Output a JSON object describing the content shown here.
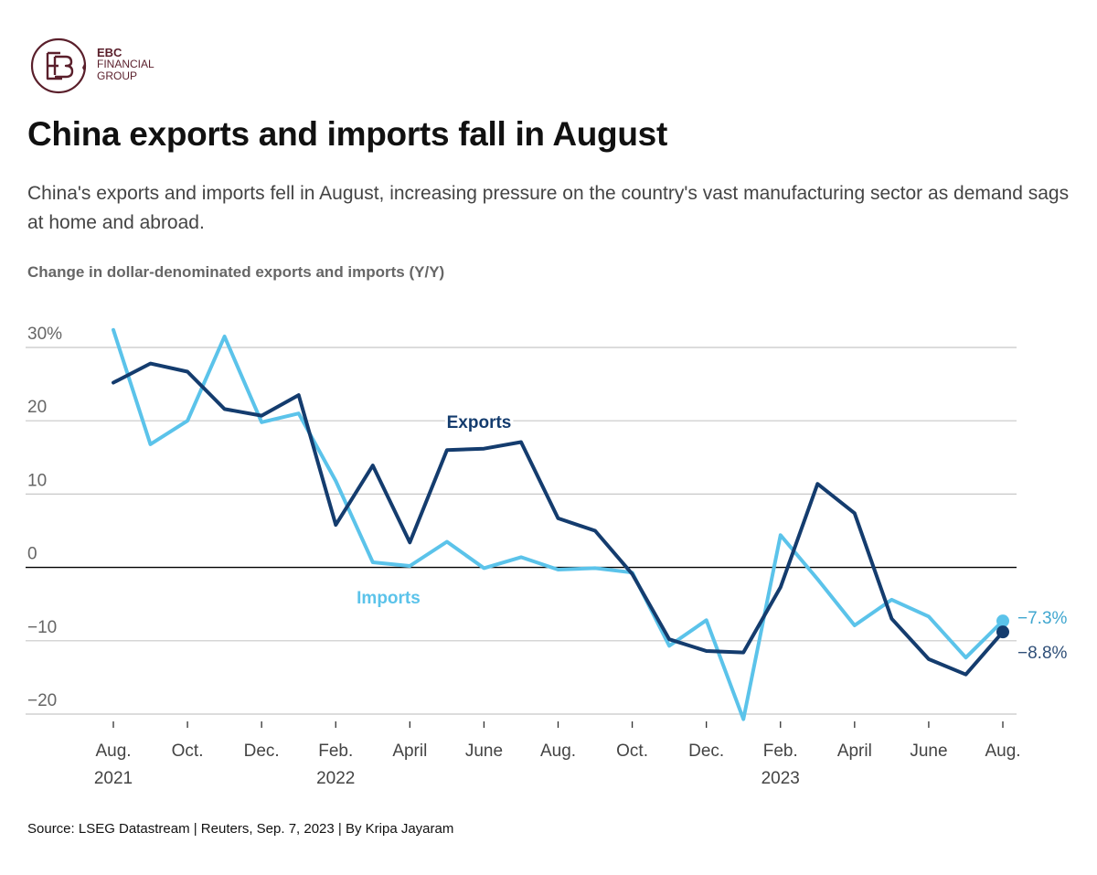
{
  "brand": {
    "logo_text": [
      "EBC",
      "FINANCIAL",
      "GROUP"
    ],
    "color": "#5a1f2b"
  },
  "title": "China exports and imports fall in August",
  "subtitle": "China's exports and imports fell in August, increasing pressure on the country's vast manufacturing sector as demand sags at home and abroad.",
  "axis_title": "Change in dollar-denominated exports and imports (Y/Y)",
  "source": "Source: LSEG Datastream | Reuters, Sep. 7, 2023 | By Kripa Jayaram",
  "chart_data": {
    "type": "line",
    "x": [
      "2021-08",
      "2021-09",
      "2021-10",
      "2021-11",
      "2021-12",
      "2022-01",
      "2022-02",
      "2022-03",
      "2022-04",
      "2022-05",
      "2022-06",
      "2022-07",
      "2022-08",
      "2022-09",
      "2022-10",
      "2022-11",
      "2022-12",
      "2023-01",
      "2023-02",
      "2023-03",
      "2023-04",
      "2023-05",
      "2023-06",
      "2023-07",
      "2023-08"
    ],
    "x_tick_labels": [
      {
        "x": "2021-08",
        "label": "Aug.",
        "year": "2021"
      },
      {
        "x": "2021-10",
        "label": "Oct.",
        "year": ""
      },
      {
        "x": "2021-12",
        "label": "Dec.",
        "year": ""
      },
      {
        "x": "2022-02",
        "label": "Feb.",
        "year": "2022"
      },
      {
        "x": "2022-04",
        "label": "April",
        "year": ""
      },
      {
        "x": "2022-06",
        "label": "June",
        "year": ""
      },
      {
        "x": "2022-08",
        "label": "Aug.",
        "year": ""
      },
      {
        "x": "2022-10",
        "label": "Oct.",
        "year": ""
      },
      {
        "x": "2022-12",
        "label": "Dec.",
        "year": ""
      },
      {
        "x": "2023-02",
        "label": "Feb.",
        "year": "2023"
      },
      {
        "x": "2023-04",
        "label": "April",
        "year": ""
      },
      {
        "x": "2023-06",
        "label": "June",
        "year": ""
      },
      {
        "x": "2023-08",
        "label": "Aug.",
        "year": ""
      }
    ],
    "series": [
      {
        "name": "Exports",
        "color": "#143c6e",
        "values": [
          25.2,
          27.8,
          26.7,
          21.6,
          20.7,
          23.5,
          5.8,
          13.9,
          3.4,
          16.0,
          16.2,
          17.1,
          6.7,
          5.0,
          -0.9,
          -9.8,
          -11.4,
          -11.6,
          -2.7,
          11.4,
          7.4,
          -7.0,
          -12.5,
          -14.6,
          -8.8
        ],
        "end_label": "−8.8%"
      },
      {
        "name": "Imports",
        "color": "#5bc3ea",
        "values": [
          32.4,
          16.8,
          20.0,
          31.5,
          19.8,
          21.0,
          11.8,
          0.7,
          0.2,
          3.5,
          -0.1,
          1.4,
          -0.3,
          -0.1,
          -0.7,
          -10.7,
          -7.2,
          -20.7,
          4.4,
          -1.6,
          -7.9,
          -4.4,
          -6.7,
          -12.3,
          -7.3
        ],
        "end_label": "−7.3%"
      }
    ],
    "yticks": [
      30,
      20,
      10,
      0,
      -10,
      -20
    ],
    "ytick_labels": [
      "30%",
      "20",
      "10",
      "0",
      "−10",
      "−20"
    ],
    "ylim": [
      -21,
      31
    ],
    "grid": true,
    "gridline_color": "#c8c8c8",
    "zero_line_color": "#000000"
  }
}
